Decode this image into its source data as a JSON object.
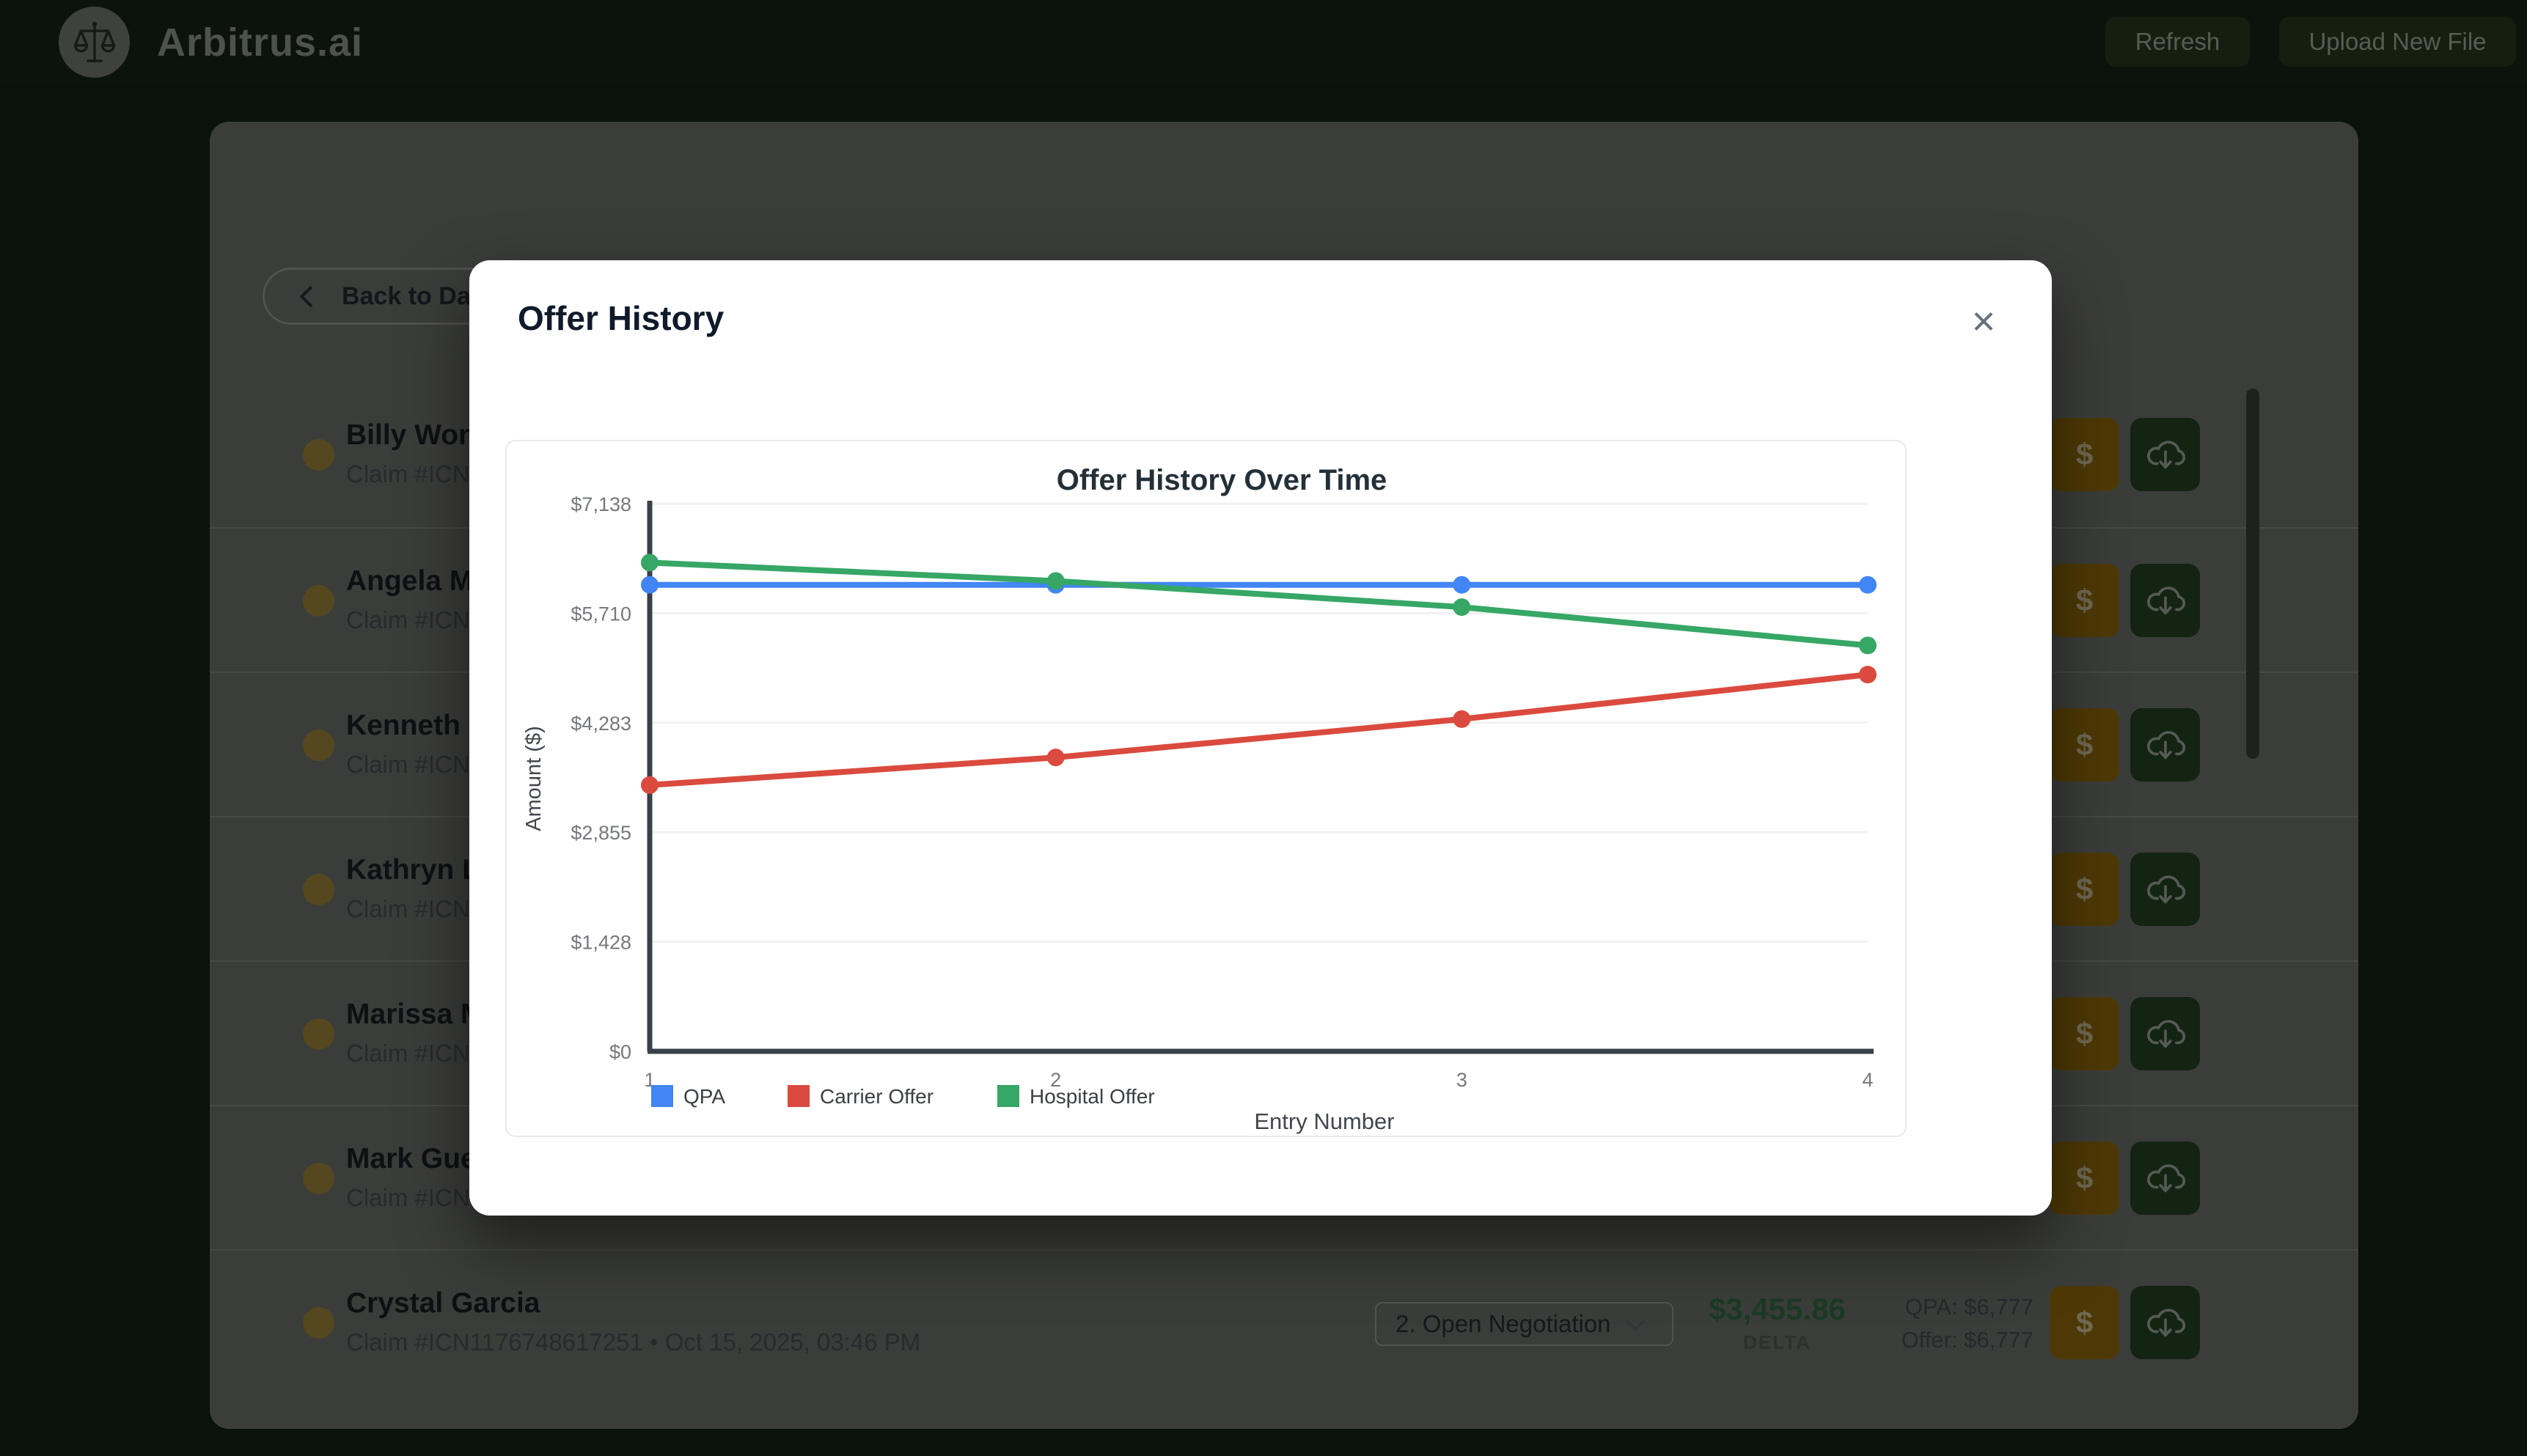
{
  "topbar": {
    "brand": "Arbitrus.ai",
    "refresh_label": "Refresh",
    "upload_label": "Upload New File"
  },
  "content": {
    "back_label": "Back to Dash",
    "dollar_label": "$"
  },
  "list": {
    "rows": [
      {
        "name": "Billy Wong",
        "claim": "Claim #ICN"
      },
      {
        "name": "Angela M",
        "claim": "Claim #ICN"
      },
      {
        "name": "Kenneth C",
        "claim": "Claim #ICN"
      },
      {
        "name": "Kathryn L",
        "claim": "Claim #ICN"
      },
      {
        "name": "Marissa M",
        "claim": "Claim #ICN"
      },
      {
        "name": "Mark Gue",
        "claim": "Claim #ICN"
      },
      {
        "name": "Crystal Garcia",
        "claim": "Claim #ICN1176748617251 • Oct 15, 2025, 03:46 PM",
        "controls": {
          "status": "2. Open Negotiation",
          "delta": "$3,455.86",
          "delta_label": "DELTA",
          "qpa": "QPA: $6,777",
          "offer": "Offer: $6,777"
        }
      }
    ]
  },
  "modal": {
    "title": "Offer History",
    "close": "×"
  },
  "chart_data": {
    "type": "line",
    "title": "Offer History Over Time",
    "xlabel": "Entry Number",
    "ylabel": "Amount ($)",
    "x": [
      1,
      2,
      3,
      4
    ],
    "x_tick_labels": [
      "1",
      "2",
      "3",
      "4"
    ],
    "series": [
      {
        "name": "QPA",
        "color": "#4285f4",
        "values": [
          6080,
          6080,
          6080,
          6080
        ]
      },
      {
        "name": "Carrier Offer",
        "color": "#db4a3e",
        "values": [
          3470,
          3830,
          4330,
          4910
        ]
      },
      {
        "name": "Hospital Offer",
        "color": "#36a765",
        "values": [
          6370,
          6130,
          5790,
          5290
        ]
      }
    ],
    "y_ticks": [
      {
        "label": "$0",
        "value": 0
      },
      {
        "label": "$1,428",
        "value": 1428
      },
      {
        "label": "$2,855",
        "value": 2855
      },
      {
        "label": "$4,283",
        "value": 4283
      },
      {
        "label": "$5,710",
        "value": 5710
      },
      {
        "label": "$7,138",
        "value": 7138
      }
    ],
    "ylim": [
      0,
      7138
    ],
    "grid": true,
    "legend_position": "bottom"
  }
}
